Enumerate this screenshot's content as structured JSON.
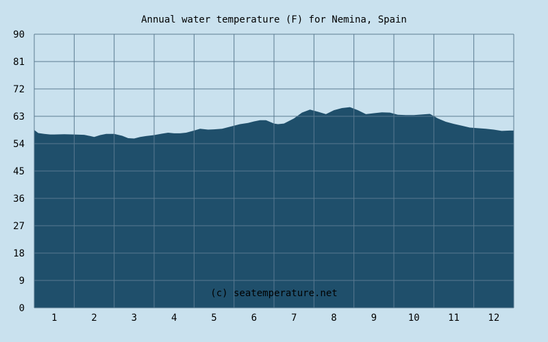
{
  "chart_data": {
    "type": "area",
    "title": "Annual water temperature (F) for Nemina, Spain",
    "watermark": "(c) seatemperature.net",
    "xlabel": "",
    "ylabel": "",
    "ylim": [
      0,
      90
    ],
    "yticks": [
      0,
      9,
      18,
      27,
      36,
      45,
      54,
      63,
      72,
      81,
      90
    ],
    "xlim": [
      0.5,
      12.5
    ],
    "xticks": [
      1,
      2,
      3,
      4,
      5,
      6,
      7,
      8,
      9,
      10,
      11,
      12
    ],
    "grid": true,
    "colors": {
      "background": "#c9e1ee",
      "fill": "#1f4f6b",
      "grid": "#5a7a90",
      "watermark": "#ffffff"
    },
    "series": [
      {
        "x": [
          0.5,
          0.6,
          0.75,
          0.9,
          1.0,
          1.25,
          1.5,
          1.75,
          1.9,
          2.0,
          2.15,
          2.3,
          2.5,
          2.7,
          2.85,
          3.0,
          3.15,
          3.3,
          3.5,
          3.7,
          3.85,
          4.0,
          4.15,
          4.3,
          4.5,
          4.65,
          4.85,
          5.0,
          5.2,
          5.5,
          5.65,
          5.85,
          6.0,
          6.15,
          6.3,
          6.5,
          6.6,
          6.75,
          7.0,
          7.2,
          7.4,
          7.6,
          7.8,
          8.0,
          8.2,
          8.4,
          8.6,
          8.8,
          9.0,
          9.2,
          9.4,
          9.6,
          9.8,
          10.0,
          10.2,
          10.4,
          10.6,
          10.8,
          11.0,
          11.2,
          11.4,
          11.6,
          11.8,
          12.0,
          12.2,
          12.4,
          12.5
        ],
        "values": [
          58.5,
          57.5,
          57.2,
          57.0,
          57.0,
          57.1,
          57.0,
          56.9,
          56.5,
          56.2,
          56.8,
          57.2,
          57.2,
          56.6,
          55.8,
          55.7,
          56.2,
          56.5,
          56.8,
          57.3,
          57.6,
          57.4,
          57.4,
          57.6,
          58.3,
          58.9,
          58.6,
          58.7,
          58.9,
          59.9,
          60.4,
          60.8,
          61.3,
          61.7,
          61.7,
          60.6,
          60.4,
          60.6,
          62.3,
          64.2,
          65.2,
          64.5,
          63.7,
          65.0,
          65.7,
          66.0,
          65.0,
          63.7,
          64.0,
          64.3,
          64.2,
          63.5,
          63.4,
          63.4,
          63.6,
          63.8,
          62.3,
          61.2,
          60.5,
          59.9,
          59.3,
          59.1,
          58.9,
          58.6,
          58.2,
          58.3,
          58.3
        ]
      }
    ]
  }
}
